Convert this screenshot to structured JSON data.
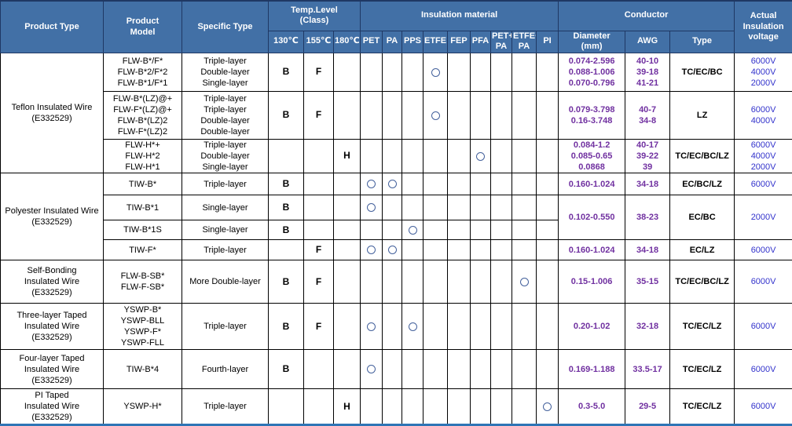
{
  "colors": {
    "header_bg": "#4270a6",
    "header_border": "#1f3864",
    "grid": "#000000",
    "diameter_awg_text": "#7030a0",
    "voltage_text": "#3333cc",
    "circle_mark": "#44619c",
    "bottom_border": "#2e75b6"
  },
  "table": {
    "header": {
      "product_type": "Product  Type",
      "product_model": "Product\nModel",
      "specific_type": "Specific Type",
      "temp_level": "Temp.Level\n(Class)",
      "insulation_material": "Insulation material",
      "conductor": "Conductor",
      "actual_voltage": "Actual\nInsulation\nvoltage",
      "temp_cols": [
        "130℃",
        "155℃",
        "180℃"
      ],
      "material_cols": [
        "PET",
        "PA",
        "PPS",
        "ETFE",
        "FEP",
        "PFA",
        "PET+\nPA",
        "ETFE+\nPA",
        "PI"
      ],
      "conductor_cols": [
        "Diameter\n(mm)",
        "AWG",
        "Type"
      ]
    },
    "rows": [
      {
        "group": "Teflon Insulated Wire\n(E332529)",
        "group_rowspan": 3,
        "model": "FLW-B*/F*\nFLW-B*2/F*2\nFLW-B*1/F*1",
        "specific": "Triple-layer\nDouble-layer\nSingle-layer",
        "temp": [
          "B",
          "F",
          ""
        ],
        "materials": [
          3
        ],
        "diameter": "0.074-2.596\n0.088-1.006\n0.070-0.796",
        "awg": "40-10\n39-18\n41-21",
        "type": "TC/EC/BC",
        "voltage": "6000V\n4000V\n2000V"
      },
      {
        "model": "FLW-B*(LZ)@+\nFLW-F*(LZ)@+\nFLW-B*(LZ)2\nFLW-F*(LZ)2",
        "specific": "Triple-layer\nTriple-layer\nDouble-layer\nDouble-layer",
        "temp": [
          "B",
          "F",
          ""
        ],
        "materials": [
          3
        ],
        "diameter": "0.079-3.798\n0.16-3.748",
        "awg": "40-7\n34-8",
        "type": "LZ",
        "voltage": "6000V\n4000V"
      },
      {
        "model": "FLW-H*+\nFLW-H*2\nFLW-H*1",
        "specific": "Triple-layer\nDouble-layer\nSingle-layer",
        "temp": [
          "",
          "",
          "H"
        ],
        "materials": [
          5
        ],
        "diameter": "0.084-1.2\n0.085-0.65\n0.0868",
        "awg": "40-17\n39-22\n39",
        "type": "TC/EC/BC/LZ",
        "voltage": "6000V\n4000V\n2000V"
      },
      {
        "group": "Polyester Insulated Wire\n(E332529)",
        "group_rowspan": 4,
        "model": "TIW-B*",
        "specific": "Triple-layer",
        "temp": [
          "B",
          "",
          ""
        ],
        "materials": [
          0,
          1
        ],
        "diameter": "0.160-1.024",
        "awg": "34-18",
        "type": "EC/BC/LZ",
        "voltage": "6000V"
      },
      {
        "model": "TIW-B*1",
        "specific": "Single-layer",
        "temp": [
          "B",
          "",
          ""
        ],
        "materials": [
          0
        ],
        "right_rowspan": 2,
        "diameter": "0.102-0.550",
        "awg": "38-23",
        "type": "EC/BC",
        "voltage": "2000V"
      },
      {
        "model": "TIW-B*1S",
        "specific": "Single-layer",
        "temp": [
          "B",
          "",
          ""
        ],
        "materials": [
          2
        ],
        "right_omit": true
      },
      {
        "model": "TIW-F*",
        "specific": "Triple-layer",
        "temp": [
          "",
          "F",
          ""
        ],
        "materials": [
          0,
          1
        ],
        "diameter": "0.160-1.024",
        "awg": "34-18",
        "type": "EC/LZ",
        "voltage": "6000V"
      },
      {
        "group": "Self-Bonding\nInsulated Wire\n(E332529)",
        "group_rowspan": 1,
        "model": "FLW-B-SB*\nFLW-F-SB*",
        "specific": "More Double-layer",
        "temp": [
          "B",
          "F",
          ""
        ],
        "materials": [
          7
        ],
        "diameter": "0.15-1.006",
        "awg": "35-15",
        "type": "TC/EC/BC/LZ",
        "voltage": "6000V"
      },
      {
        "group": "Three-layer Taped\nInsulated Wire\n(E332529)",
        "group_rowspan": 1,
        "model": "YSWP-B*\nYSWP-BLL\nYSWP-F*\nYSWP-FLL",
        "specific": "Triple-layer",
        "temp": [
          "B",
          "F",
          ""
        ],
        "materials": [
          0,
          2
        ],
        "diameter": "0.20-1.02",
        "awg": "32-18",
        "type": "TC/EC/LZ",
        "voltage": "6000V"
      },
      {
        "group": "Four-layer Taped\nInsulated Wire\n(E332529)",
        "group_rowspan": 1,
        "model": "TIW-B*4",
        "specific": "Fourth-layer",
        "temp": [
          "B",
          "",
          ""
        ],
        "materials": [
          0
        ],
        "diameter": "0.169-1.188",
        "awg": "33.5-17",
        "type": "TC/EC/LZ",
        "voltage": "6000V"
      },
      {
        "group": "PI Taped\nInsulated Wire\n(E332529)",
        "group_rowspan": 1,
        "model": "YSWP-H*",
        "specific": "Triple-layer",
        "temp": [
          "",
          "",
          "H"
        ],
        "materials": [
          8
        ],
        "diameter": "0.3-5.0",
        "awg": "29-5",
        "type": "TC/EC/LZ",
        "voltage": "6000V"
      }
    ]
  }
}
